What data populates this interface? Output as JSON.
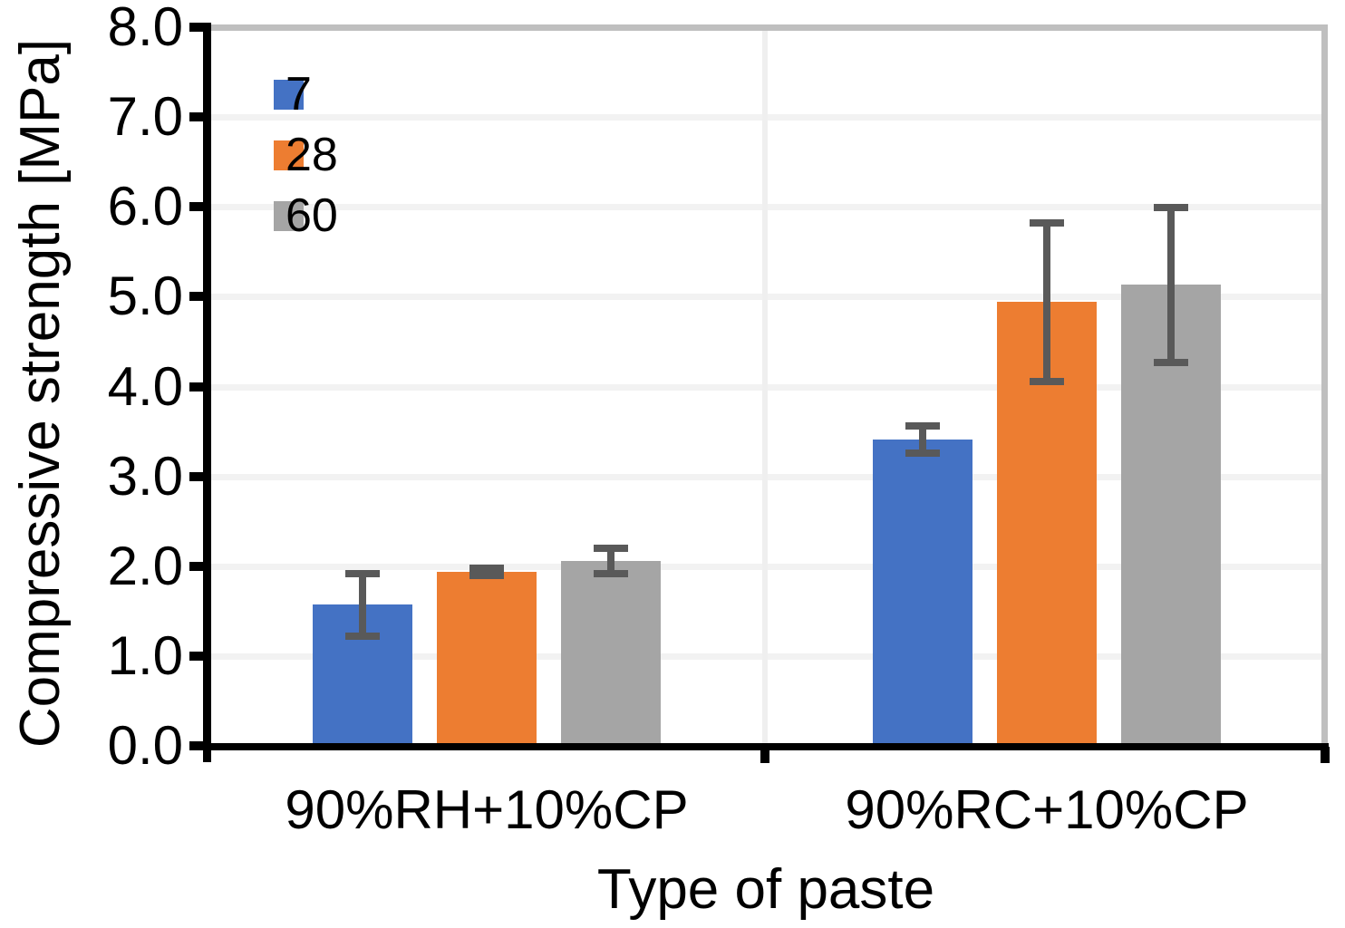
{
  "chart_data": {
    "type": "bar",
    "title": "",
    "xlabel": "Type of paste",
    "ylabel": "Compressive strength [MPa]",
    "categories": [
      "90%RH+10%CP",
      "90%RC+10%CP"
    ],
    "series": [
      {
        "name": "7",
        "color": "#4472C4",
        "values": [
          1.57,
          3.41
        ],
        "errors": [
          0.35,
          0.15
        ]
      },
      {
        "name": "28",
        "color": "#ED7D31",
        "values": [
          1.94,
          4.94
        ],
        "errors": [
          0.04,
          0.88
        ]
      },
      {
        "name": "60",
        "color": "#A5A5A5",
        "values": [
          2.06,
          5.13
        ],
        "errors": [
          0.14,
          0.86
        ]
      }
    ],
    "ylim": [
      0.0,
      8.0
    ],
    "ytick_values": [
      0,
      1,
      2,
      3,
      4,
      5,
      6,
      7,
      8
    ],
    "ytick_labels": [
      "0.0",
      "1.0",
      "2.0",
      "3.0",
      "4.0",
      "5.0",
      "6.0",
      "7.0",
      "8.0"
    ],
    "grid": true,
    "legend_position": "top-left-inside",
    "legend_entries": [
      "7",
      "28",
      "60"
    ],
    "colors": {
      "error_bar": "#595959",
      "gridline": "#F2F2F2",
      "chart_border": "#BFBFBF",
      "axis": "#000000",
      "category_separator": "#EFEFEF",
      "text": "#000000",
      "background": "#FFFFFF"
    }
  }
}
